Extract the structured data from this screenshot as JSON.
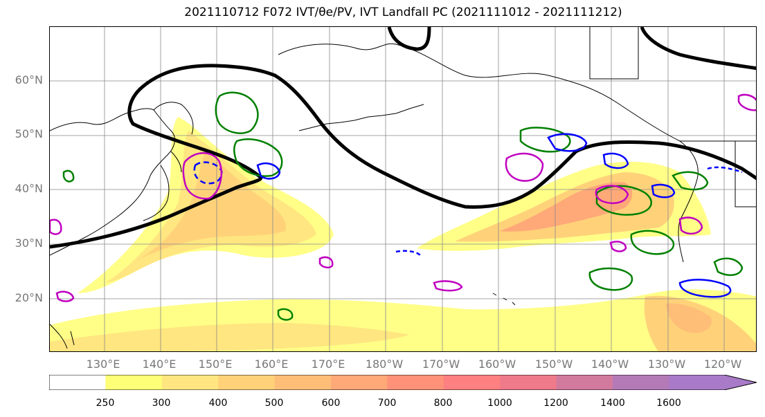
{
  "title": "2021110712 F072 IVT/θe/PV, IVT Landfall PC (2021111012 - 2021111212)",
  "lat_labels": [
    "60°N",
    "50°N",
    "40°N",
    "30°N",
    "20°N"
  ],
  "lon_labels": [
    "130°E",
    "140°E",
    "150°E",
    "160°E",
    "170°E",
    "180°W",
    "170°W",
    "160°W",
    "150°W",
    "140°W",
    "130°W",
    "120°W"
  ],
  "colorbar": {
    "ticks": [
      "250",
      "300",
      "400",
      "500",
      "600",
      "700",
      "800",
      "1000",
      "1200",
      "1400",
      "1600"
    ],
    "colors": [
      "#ffffff",
      "#ffff77",
      "#ffe680",
      "#ffd27a",
      "#ffbe78",
      "#ffa878",
      "#ff9278",
      "#ff8080",
      "#ee7a8a",
      "#d27a9e",
      "#b47ab8",
      "#a87ac8"
    ]
  },
  "contour_colors": {
    "theta_e": "#000000",
    "pv_positive": "#008000",
    "pv_negative": "#0000ff",
    "landfall": "#c000c0"
  }
}
